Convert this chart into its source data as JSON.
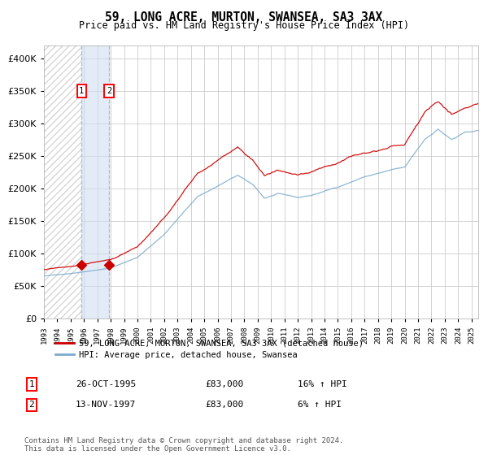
{
  "title": "59, LONG ACRE, MURTON, SWANSEA, SA3 3AX",
  "subtitle": "Price paid vs. HM Land Registry's House Price Index (HPI)",
  "legend_line1": "59, LONG ACRE, MURTON, SWANSEA, SA3 3AX (detached house)",
  "legend_line2": "HPI: Average price, detached house, Swansea",
  "transaction1_date": "26-OCT-1995",
  "transaction1_price": 83000,
  "transaction1_hpi": "16% ↑ HPI",
  "transaction2_date": "13-NOV-1997",
  "transaction2_price": 83000,
  "transaction2_hpi": "6% ↑ HPI",
  "transaction1_x": 1995.82,
  "transaction2_x": 1997.87,
  "ylim": [
    0,
    420000
  ],
  "xlim_start": 1993,
  "xlim_end": 2025.5,
  "red_line_color": "#cc0000",
  "blue_line_color": "#7aaacc",
  "background_color": "#ffffff",
  "grid_color": "#cccccc",
  "footer_text": "Contains HM Land Registry data © Crown copyright and database right 2024.\nThis data is licensed under the Open Government Licence v3.0."
}
